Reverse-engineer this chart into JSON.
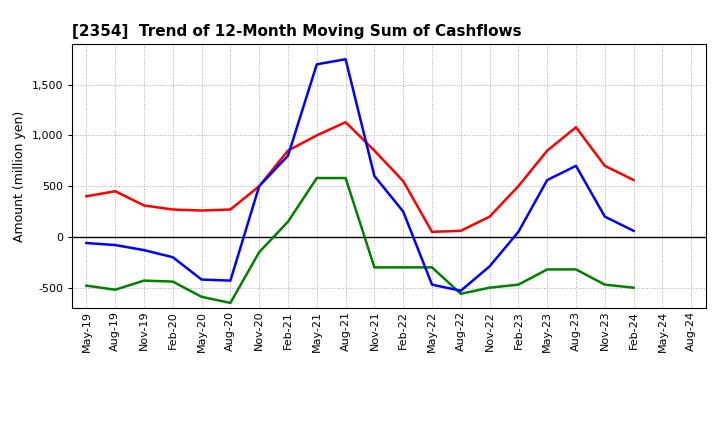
{
  "title": "[2354]  Trend of 12-Month Moving Sum of Cashflows",
  "ylabel": "Amount (million yen)",
  "x_labels": [
    "May-19",
    "Aug-19",
    "Nov-19",
    "Feb-20",
    "May-20",
    "Aug-20",
    "Nov-20",
    "Feb-21",
    "May-21",
    "Aug-21",
    "Nov-21",
    "Feb-22",
    "May-22",
    "Aug-22",
    "Nov-22",
    "Feb-23",
    "May-23",
    "Aug-23",
    "Nov-23",
    "Feb-24",
    "May-24",
    "Aug-24"
  ],
  "operating_cashflow": [
    400,
    450,
    310,
    270,
    260,
    270,
    500,
    850,
    1000,
    1130,
    850,
    550,
    50,
    60,
    200,
    500,
    850,
    1080,
    700,
    560,
    null,
    null
  ],
  "investing_cashflow": [
    -480,
    -520,
    -430,
    -440,
    -590,
    -650,
    -150,
    150,
    580,
    580,
    -300,
    -300,
    -300,
    -560,
    -500,
    -470,
    -320,
    -320,
    -470,
    -500,
    null,
    null
  ],
  "free_cashflow": [
    -60,
    -80,
    -130,
    -200,
    -420,
    -430,
    500,
    800,
    1700,
    1750,
    600,
    250,
    -470,
    -530,
    -290,
    50,
    560,
    700,
    200,
    60,
    null,
    null
  ],
  "operating_color": "#ff0000",
  "investing_color": "#008000",
  "free_color": "#0000ff",
  "ylim": [
    -700,
    1900
  ],
  "yticks": [
    -500,
    0,
    500,
    1000,
    1500
  ],
  "grid_color": "#aaaaaa",
  "background_color": "#ffffff",
  "line_width": 1.8,
  "title_fontsize": 11,
  "ylabel_fontsize": 9,
  "tick_fontsize": 8,
  "legend_fontsize": 9
}
